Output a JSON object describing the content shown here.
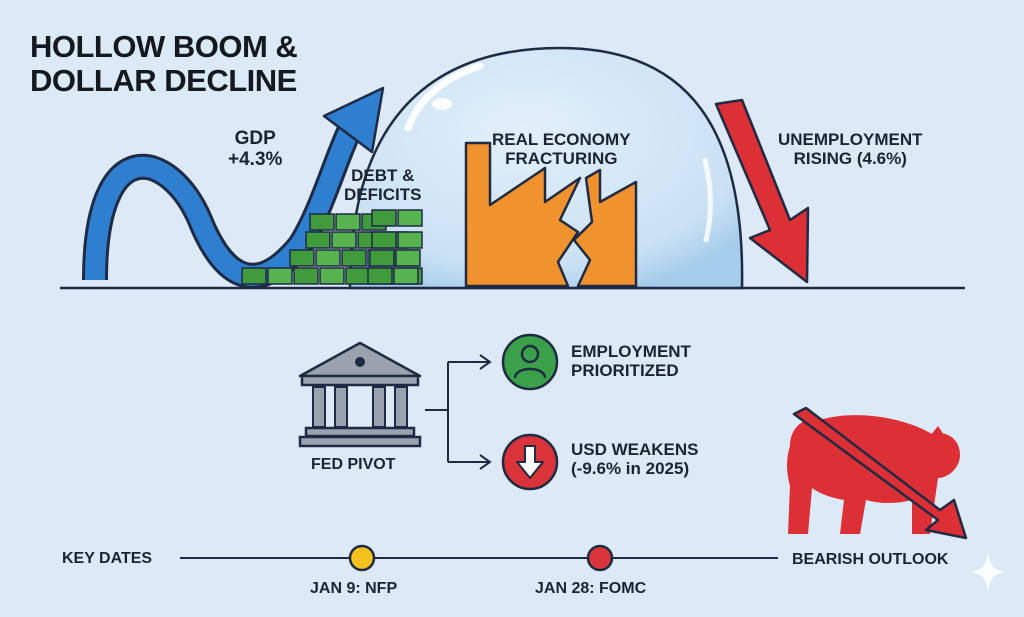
{
  "title": [
    "HOLLOW BOOM &",
    "DOLLAR DECLINE"
  ],
  "top_scene": {
    "gdp": {
      "label": "GDP",
      "value": "+4.3%"
    },
    "debt": {
      "label_line1": "DEBT &",
      "label_line2": "DEFICITS"
    },
    "real_economy": {
      "label_line1": "REAL ECONOMY",
      "label_line2": "FRACTURING"
    },
    "unemployment": {
      "label_line1": "UNEMPLOYMENT",
      "label_line2": "RISING (4.6%)"
    }
  },
  "fed": {
    "label": "FED PIVOT",
    "outcomes": [
      {
        "line1": "EMPLOYMENT",
        "line2": "PRIORITIZED",
        "icon": "person-icon",
        "color": "#3aa04a"
      },
      {
        "line1": "USD WEAKENS",
        "line2": "(-9.6% in 2025)",
        "icon": "down-arrow-icon",
        "color": "#d9343a"
      }
    ]
  },
  "timeline": {
    "label": "KEY DATES",
    "dates": [
      {
        "label": "JAN 9: NFP",
        "color": "#f4c21e"
      },
      {
        "label": "JAN 28: FOMC",
        "color": "#d9343a"
      }
    ]
  },
  "outlook": {
    "label": "BEARISH OUTLOOK",
    "icon": "bear-icon"
  },
  "colors": {
    "blue": "#2f7fd0",
    "green": "#3f9b3c",
    "orange": "#f0922e",
    "red": "#dd2f36",
    "background": "#dbeaf6"
  }
}
